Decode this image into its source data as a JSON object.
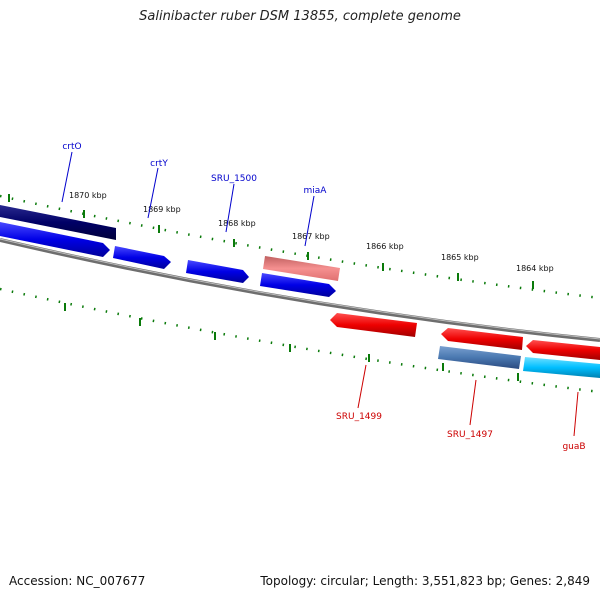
{
  "title": "Salinibacter ruber DSM 13855, complete genome",
  "accession": "Accession: NC_007677",
  "summary": "Topology: circular; Length: 3,551,823 bp; Genes: 2,849",
  "ticks": {
    "k1870": "1870 kbp",
    "k1869": "1869 kbp",
    "k1868": "1868 kbp",
    "k1867": "1867 kbp",
    "k1866": "1866 kbp",
    "k1865": "1865 kbp",
    "k1864": "1864 kbp"
  },
  "genes": {
    "crtO": "crtO",
    "crtY": "crtY",
    "sru1500": "SRU_1500",
    "miaA": "miaA",
    "sru1499": "SRU_1499",
    "sru1497": "SRU_1497",
    "guaB": "guaB"
  },
  "colors": {
    "forward": "#0000ee",
    "forward_dark": "#00006e",
    "forward_light": "#f08080",
    "reverse": "#ee0000",
    "reverse_steel": "#4a78b0",
    "reverse_cyan": "#00bfff",
    "ticks": "#0a7a0a",
    "backbone": "#808080",
    "label_blue": "#0000cc",
    "label_red": "#cc0000"
  }
}
